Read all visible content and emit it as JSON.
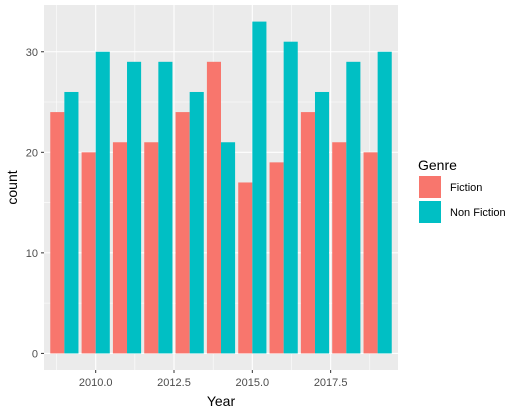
{
  "chart_data": {
    "type": "bar",
    "layout": "dodge",
    "xlabel": "Year",
    "ylabel": "count",
    "x": [
      2009,
      2010,
      2011,
      2012,
      2013,
      2014,
      2015,
      2016,
      2017,
      2018,
      2019
    ],
    "xlim": [
      2008.35,
      2019.65
    ],
    "ylim": [
      -1.65,
      34.65
    ],
    "x_ticks": [
      2010,
      2012.5,
      2015,
      2017.5
    ],
    "x_tick_labels": [
      "2010.0",
      "2012.5",
      "2015.0",
      "2017.5"
    ],
    "y_ticks": [
      0,
      10,
      20,
      30
    ],
    "y_tick_labels": [
      "0",
      "10",
      "20",
      "30"
    ],
    "grid": true,
    "legend": {
      "title": "Genre",
      "placement": "right"
    },
    "series": [
      {
        "name": "Fiction",
        "color": "#F8766D",
        "values": [
          24,
          20,
          21,
          21,
          24,
          29,
          17,
          19,
          24,
          21,
          20
        ]
      },
      {
        "name": "Non Fiction",
        "color": "#00BFC4",
        "values": [
          26,
          30,
          29,
          29,
          26,
          21,
          33,
          31,
          26,
          29,
          30
        ]
      }
    ]
  }
}
